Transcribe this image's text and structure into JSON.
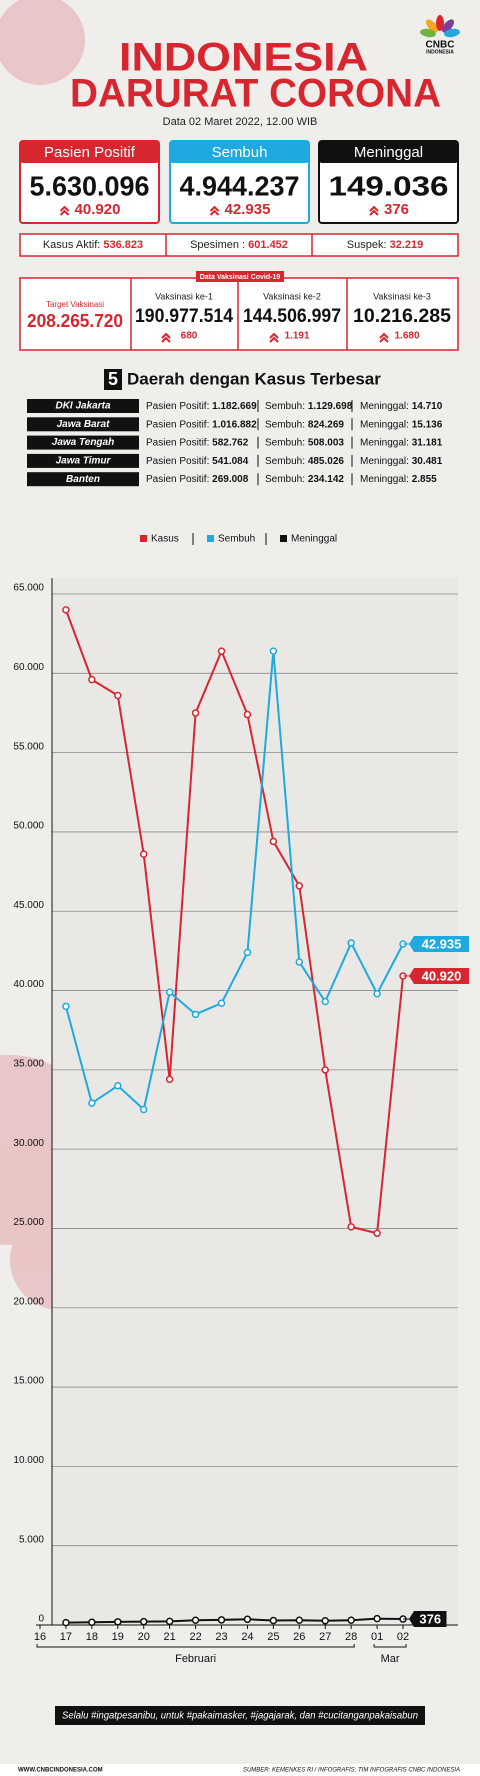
{
  "header": {
    "title_line1": "INDONESIA",
    "title_line2": "DARURAT CORONA",
    "logo": "CNBC",
    "logo_sub": "INDONESIA",
    "date": "Data 02 Maret 2022, 12.00 WIB"
  },
  "summary": [
    {
      "label": "Pasien Positif",
      "value": "5.630.096",
      "change": "40.920",
      "color": "#d7262f"
    },
    {
      "label": "Sembuh",
      "value": "4.944.237",
      "change": "42.935",
      "color": "#1ea9e1"
    },
    {
      "label": "Meninggal",
      "value": "149.036",
      "change": "376",
      "color": "#111111"
    }
  ],
  "stats": [
    {
      "label": "Kasus Aktif: ",
      "value": "536.823"
    },
    {
      "label": "Spesimen : ",
      "value": "601.452"
    },
    {
      "label": "Suspek: ",
      "value": "32.219"
    }
  ],
  "vaccine": {
    "tag": "Data Vaksinasi Covid-19",
    "target_label": "Target Vaksinasi",
    "target": "208.265.720",
    "doses": [
      {
        "label": "Vaksinasi ke-1",
        "value": "190.977.514",
        "change": "680"
      },
      {
        "label": "Vaksinasi ke-2",
        "value": "144.506.997",
        "change": "1.191"
      },
      {
        "label": "Vaksinasi ke-3",
        "value": "10.216.285",
        "change": "1.680"
      }
    ]
  },
  "regions": {
    "title_number": "5",
    "title": "Daerah dengan Kasus Terbesar",
    "labels": [
      "Pasien Positif: ",
      "Sembuh: ",
      "Meninggal: "
    ],
    "rows": [
      [
        "DKI Jakarta",
        "1.182.669",
        "1.129.698",
        "14.710"
      ],
      [
        "Jawa Barat",
        "1.016.882",
        "824.269",
        "15.136"
      ],
      [
        "Jawa Tengah",
        "582.762",
        "508.003",
        "31.181"
      ],
      [
        "Jawa Timur",
        "541.084",
        "485.026",
        "30.481"
      ],
      [
        "Banten",
        "269.008",
        "234.142",
        "2.855"
      ]
    ]
  },
  "chart_data": {
    "type": "line",
    "categories": [
      "16",
      "17",
      "18",
      "19",
      "20",
      "21",
      "22",
      "23",
      "24",
      "25",
      "26",
      "27",
      "28",
      "01",
      "02"
    ],
    "x_group_labels": [
      "Februari",
      "Mar"
    ],
    "series": [
      {
        "name": "Kasus",
        "color": "#d7262f",
        "values": [
          null,
          64000,
          59600,
          58600,
          48600,
          34400,
          57500,
          61400,
          57400,
          49400,
          46600,
          35000,
          25100,
          24700,
          40920
        ],
        "value_labels": [
          null,
          null,
          null,
          null,
          null,
          null,
          null,
          null,
          null,
          null,
          null,
          null,
          null,
          null,
          "40.920"
        ]
      },
      {
        "name": "Sembuh",
        "color": "#1ea9e1",
        "values": [
          null,
          39000,
          32900,
          34000,
          32500,
          39900,
          38500,
          39200,
          42400,
          61400,
          41800,
          39300,
          43000,
          39800,
          42935
        ],
        "value_labels": [
          null,
          null,
          null,
          null,
          null,
          null,
          null,
          null,
          null,
          null,
          null,
          null,
          null,
          null,
          "42.935"
        ]
      },
      {
        "name": "Meninggal",
        "color": "#111111",
        "values": [
          null,
          150,
          170,
          200,
          210,
          230,
          300,
          320,
          360,
          280,
          300,
          270,
          300,
          400,
          376
        ],
        "value_labels": [
          null,
          null,
          null,
          null,
          null,
          null,
          null,
          null,
          null,
          null,
          null,
          null,
          null,
          null,
          "376"
        ]
      }
    ],
    "ylim": [
      0,
      66000
    ],
    "yticks": [
      0,
      {
        "value": 5000,
        "label": "5.000"
      },
      {
        "value": 10000,
        "label": "10.000"
      },
      {
        "value": 15000,
        "label": "15.000"
      },
      {
        "value": 20000,
        "label": "20.000"
      },
      {
        "value": 25000,
        "label": "25.000"
      },
      {
        "value": 30000,
        "label": "30.000"
      },
      {
        "value": 35000,
        "label": "35.000"
      },
      {
        "value": 40000,
        "label": "40.000"
      },
      {
        "value": 45000,
        "label": "45.000"
      },
      {
        "value": 50000,
        "label": "50.000"
      },
      {
        "value": 55000,
        "label": "55.000"
      },
      {
        "value": 60000,
        "label": "60.000"
      },
      {
        "value": 65000,
        "label": "65.000"
      }
    ],
    "grid": true,
    "legend": "top"
  },
  "footer": {
    "hashtags": "Selalu #ingatpesanibu, untuk #pakaimasker, #jagajarak, dan #cucitanganpakaisabun",
    "website": "WWW.CNBCINDONESIA.COM",
    "source": "SUMBER: KEMENKES RI / INFOGRAFIS: TIM INFOGRAFIS CNBC INDONESIA"
  }
}
